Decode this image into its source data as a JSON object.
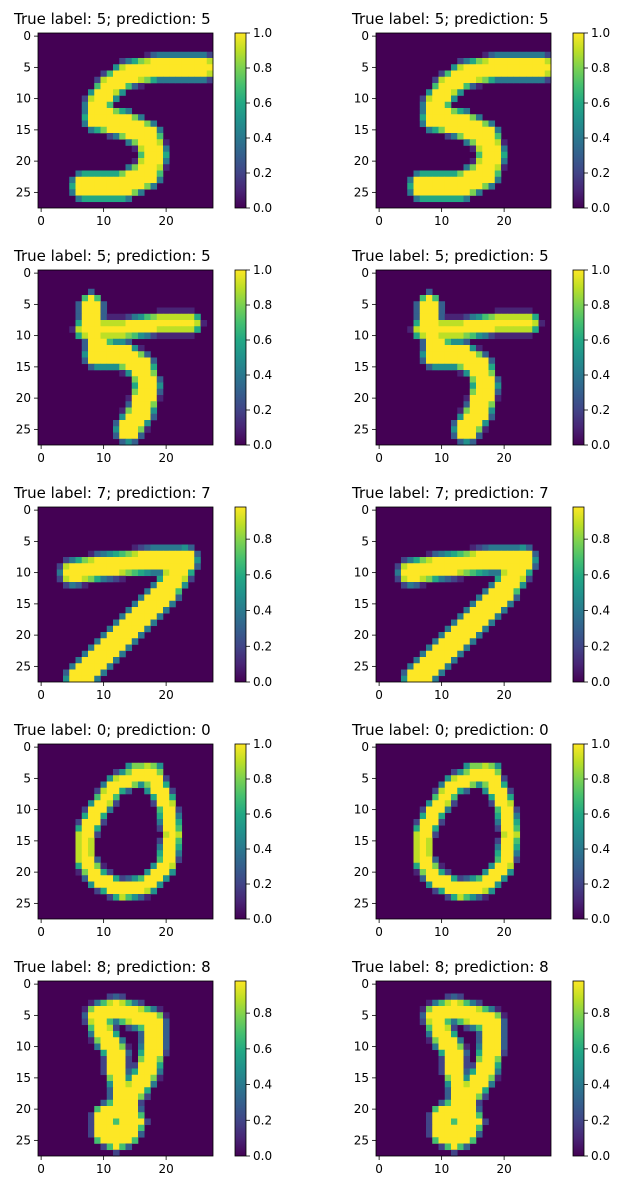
{
  "figure": {
    "colormap": "viridis",
    "background_color": "#440154",
    "digit_color": "#fde725",
    "image_size": 28
  },
  "chart_data": [
    {
      "type": "heatmap",
      "title": "True label: 5; prediction: 5",
      "true_label": 5,
      "prediction": 5,
      "digit": "5",
      "xticks": [
        "0",
        "10",
        "20"
      ],
      "yticks": [
        "0",
        "5",
        "10",
        "15",
        "20",
        "25"
      ],
      "xlim": [
        -0.5,
        27.5
      ],
      "ylim": [
        27.5,
        -0.5
      ],
      "colorbar": {
        "range": [
          0,
          1.0
        ],
        "ticks": [
          "0.0",
          "0.2",
          "0.4",
          "0.6",
          "0.8",
          "1.0"
        ]
      }
    },
    {
      "type": "heatmap",
      "title": "True label: 5; prediction: 5",
      "true_label": 5,
      "prediction": 5,
      "digit": "5",
      "xticks": [
        "0",
        "10",
        "20"
      ],
      "yticks": [
        "0",
        "5",
        "10",
        "15",
        "20",
        "25"
      ],
      "xlim": [
        -0.5,
        27.5
      ],
      "ylim": [
        27.5,
        -0.5
      ],
      "colorbar": {
        "range": [
          0,
          1.0
        ],
        "ticks": [
          "0.0",
          "0.2",
          "0.4",
          "0.6",
          "0.8",
          "1.0"
        ]
      }
    },
    {
      "type": "heatmap",
      "title": "True label: 5; prediction: 5",
      "true_label": 5,
      "prediction": 5,
      "digit": "5b",
      "xticks": [
        "0",
        "10",
        "20"
      ],
      "yticks": [
        "0",
        "5",
        "10",
        "15",
        "20",
        "25"
      ],
      "xlim": [
        -0.5,
        27.5
      ],
      "ylim": [
        27.5,
        -0.5
      ],
      "colorbar": {
        "range": [
          0,
          1.0
        ],
        "ticks": [
          "0.0",
          "0.2",
          "0.4",
          "0.6",
          "0.8",
          "1.0"
        ]
      }
    },
    {
      "type": "heatmap",
      "title": "True label: 5; prediction: 5",
      "true_label": 5,
      "prediction": 5,
      "digit": "5b",
      "xticks": [
        "0",
        "10",
        "20"
      ],
      "yticks": [
        "0",
        "5",
        "10",
        "15",
        "20",
        "25"
      ],
      "xlim": [
        -0.5,
        27.5
      ],
      "ylim": [
        27.5,
        -0.5
      ],
      "colorbar": {
        "range": [
          0,
          1.0
        ],
        "ticks": [
          "0.0",
          "0.2",
          "0.4",
          "0.6",
          "0.8",
          "1.0"
        ]
      }
    },
    {
      "type": "heatmap",
      "title": "True label: 7; prediction: 7",
      "true_label": 7,
      "prediction": 7,
      "digit": "7",
      "xticks": [
        "0",
        "10",
        "20"
      ],
      "yticks": [
        "0",
        "5",
        "10",
        "15",
        "20",
        "25"
      ],
      "xlim": [
        -0.5,
        27.5
      ],
      "ylim": [
        27.5,
        -0.5
      ],
      "colorbar": {
        "range": [
          0,
          0.98
        ],
        "ticks": [
          "0.0",
          "0.2",
          "0.4",
          "0.6",
          "0.8"
        ]
      }
    },
    {
      "type": "heatmap",
      "title": "True label: 7; prediction: 7",
      "true_label": 7,
      "prediction": 7,
      "digit": "7",
      "xticks": [
        "0",
        "10",
        "20"
      ],
      "yticks": [
        "0",
        "5",
        "10",
        "15",
        "20",
        "25"
      ],
      "xlim": [
        -0.5,
        27.5
      ],
      "ylim": [
        27.5,
        -0.5
      ],
      "colorbar": {
        "range": [
          0,
          0.98
        ],
        "ticks": [
          "0.0",
          "0.2",
          "0.4",
          "0.6",
          "0.8"
        ]
      }
    },
    {
      "type": "heatmap",
      "title": "True label: 0; prediction: 0",
      "true_label": 0,
      "prediction": 0,
      "digit": "0",
      "xticks": [
        "0",
        "10",
        "20"
      ],
      "yticks": [
        "0",
        "5",
        "10",
        "15",
        "20",
        "25"
      ],
      "xlim": [
        -0.5,
        27.5
      ],
      "ylim": [
        27.5,
        -0.5
      ],
      "colorbar": {
        "range": [
          0,
          1.0
        ],
        "ticks": [
          "0.0",
          "0.2",
          "0.4",
          "0.6",
          "0.8",
          "1.0"
        ]
      }
    },
    {
      "type": "heatmap",
      "title": "True label: 0; prediction: 0",
      "true_label": 0,
      "prediction": 0,
      "digit": "0",
      "xticks": [
        "0",
        "10",
        "20"
      ],
      "yticks": [
        "0",
        "5",
        "10",
        "15",
        "20",
        "25"
      ],
      "xlim": [
        -0.5,
        27.5
      ],
      "ylim": [
        27.5,
        -0.5
      ],
      "colorbar": {
        "range": [
          0,
          1.0
        ],
        "ticks": [
          "0.0",
          "0.2",
          "0.4",
          "0.6",
          "0.8",
          "1.0"
        ]
      }
    },
    {
      "type": "heatmap",
      "title": "True label: 8; prediction: 8",
      "true_label": 8,
      "prediction": 8,
      "digit": "8",
      "xticks": [
        "0",
        "10",
        "20"
      ],
      "yticks": [
        "0",
        "5",
        "10",
        "15",
        "20",
        "25"
      ],
      "xlim": [
        -0.5,
        27.5
      ],
      "ylim": [
        27.5,
        -0.5
      ],
      "colorbar": {
        "range": [
          0,
          0.98
        ],
        "ticks": [
          "0.0",
          "0.2",
          "0.4",
          "0.6",
          "0.8"
        ]
      }
    },
    {
      "type": "heatmap",
      "title": "True label: 8; prediction: 8",
      "true_label": 8,
      "prediction": 8,
      "digit": "8",
      "xticks": [
        "0",
        "10",
        "20"
      ],
      "yticks": [
        "0",
        "5",
        "10",
        "15",
        "20",
        "25"
      ],
      "xlim": [
        -0.5,
        27.5
      ],
      "ylim": [
        27.5,
        -0.5
      ],
      "colorbar": {
        "range": [
          0,
          0.98
        ],
        "ticks": [
          "0.0",
          "0.2",
          "0.4",
          "0.6",
          "0.8"
        ]
      }
    }
  ]
}
